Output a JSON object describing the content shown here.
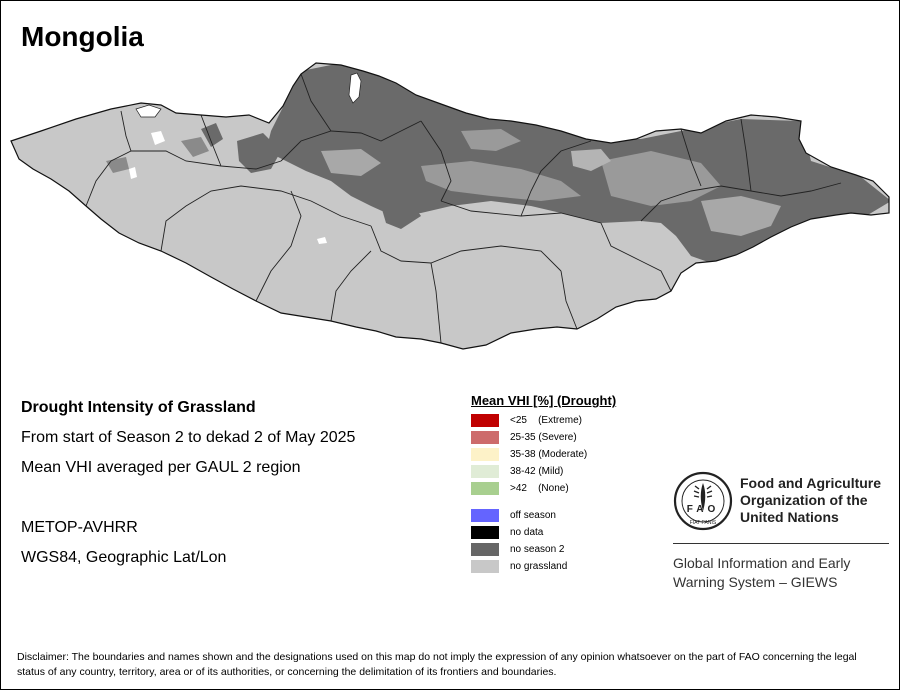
{
  "map": {
    "country": "Mongolia",
    "colors": {
      "grassland_none": "#c8c8c8",
      "no_season_2": "#6a6a6a",
      "no_data": "#ffffff",
      "boundary": "#222222",
      "background": "#ffffff"
    }
  },
  "info": {
    "title": "Drought Intensity of Grassland",
    "period": "From start of Season 2 to dekad 2 of May 2025",
    "method": "Mean VHI averaged per GAUL 2 region",
    "sensor": "METOP-AVHRR",
    "projection": "WGS84, Geographic Lat/Lon"
  },
  "legend": {
    "title": "Mean VHI [%] (Drought)",
    "items": [
      {
        "label": "<25    (Extreme)",
        "color": "#c00000"
      },
      {
        "label": "25-35 (Severe)",
        "color": "#cd6b6b"
      },
      {
        "label": "35-38 (Moderate)",
        "color": "#fdf2c8"
      },
      {
        "label": "38-42 (Mild)",
        "color": "#e0ecd6"
      },
      {
        "label": ">42    (None)",
        "color": "#a8cf8f"
      }
    ],
    "extra_items": [
      {
        "label": "off season",
        "color": "#6464ff"
      },
      {
        "label": "no data",
        "color": "#000000"
      },
      {
        "label": "no season 2",
        "color": "#666666"
      },
      {
        "label": "no grassland",
        "color": "#c8c8c8"
      }
    ]
  },
  "fao": {
    "logo_text": "FAO",
    "logo_motto": "FIAT PANIS",
    "name_line1": "Food and Agriculture",
    "name_line2": "Organization of the",
    "name_line3": "United Nations",
    "giews_line1": "Global Information and Early",
    "giews_line2": "Warning System – GIEWS"
  },
  "disclaimer": "Disclaimer: The boundaries and names shown and the designations used on this map do not imply the expression of any opinion whatsoever on the part of FAO concerning the legal status of any country, territory, area or of its authorities, or concerning the delimitation of its frontiers and boundaries."
}
